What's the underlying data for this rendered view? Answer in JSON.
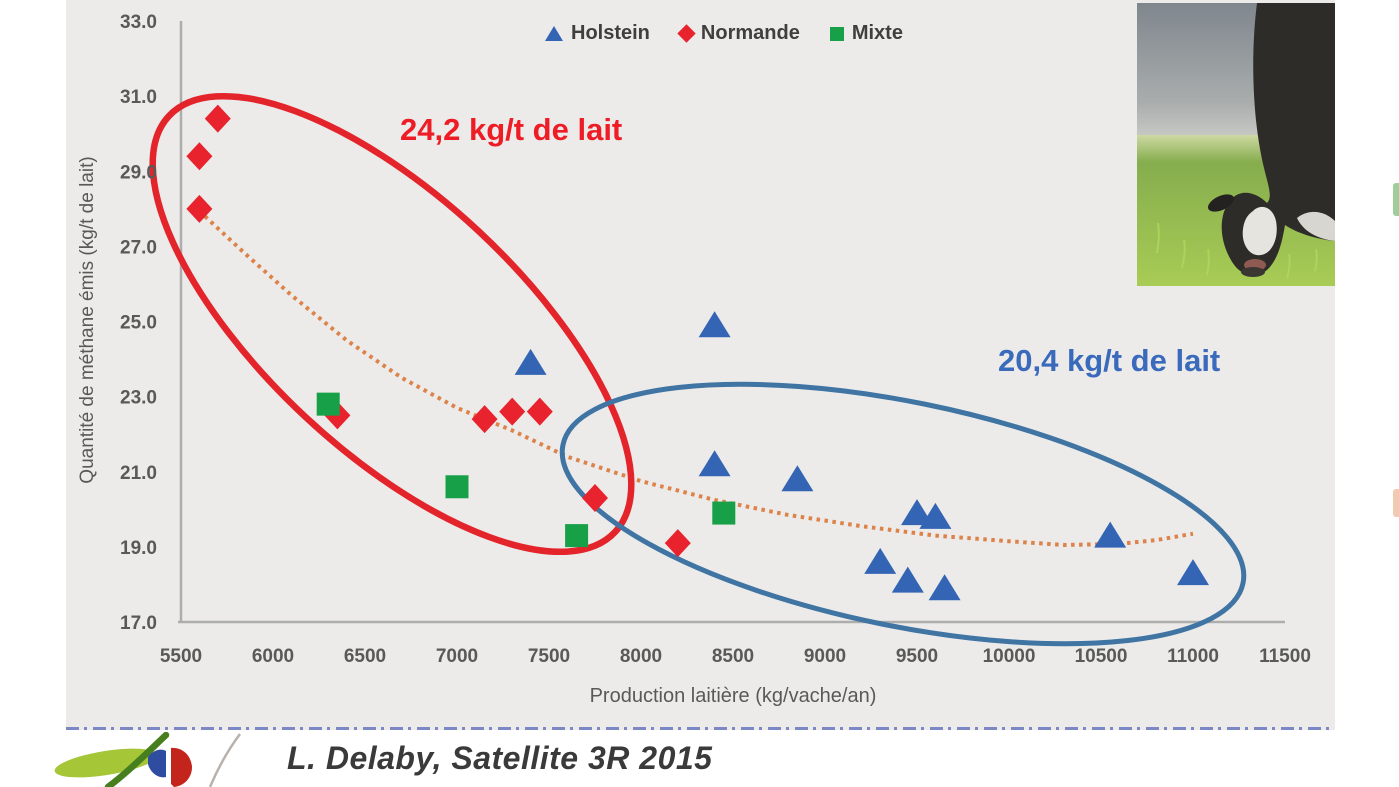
{
  "slide": {
    "background": "#ECEBEA",
    "separator_color": "#7C87C6",
    "footer": {
      "caption": "L. Delaby, Satellite 3R 2015"
    }
  },
  "edge_marks": {
    "green": "#9FCE9B",
    "pink": "#F0CBB1"
  },
  "cow_photo": {
    "description": "Holstein cow grazing in a pasture"
  },
  "chart_data": {
    "type": "scatter",
    "title": "",
    "xlabel": "Production laitière (kg/vache/an)",
    "ylabel": "Quantité de méthane émis (kg/t de lait)",
    "xlim": [
      5500,
      11500
    ],
    "ylim": [
      17.0,
      33.0
    ],
    "grid": false,
    "legend_position": "top",
    "x_ticks": [
      "5500",
      "6000",
      "6500",
      "7000",
      "7500",
      "8000",
      "8500",
      "9000",
      "9500",
      "10000",
      "10500",
      "11000",
      "11500"
    ],
    "y_ticks": [
      "33.0",
      "31.0",
      "29.0",
      "27.0",
      "25.0",
      "23.0",
      "21.0",
      "19.0",
      "17.0"
    ],
    "axis_color": "#ADADAD",
    "tick_color": "#595959",
    "series": [
      {
        "name": "Holstein",
        "marker": "triangle",
        "color": "#3465B4",
        "points": [
          [
            7400,
            23.9
          ],
          [
            8400,
            24.9
          ],
          [
            8400,
            21.2
          ],
          [
            8850,
            20.8
          ],
          [
            9300,
            18.6
          ],
          [
            9450,
            18.1
          ],
          [
            9500,
            19.9
          ],
          [
            9600,
            19.8
          ],
          [
            9650,
            17.9
          ],
          [
            10550,
            19.3
          ],
          [
            11000,
            18.3
          ]
        ]
      },
      {
        "name": "Normande",
        "marker": "diamond",
        "color": "#E8232E",
        "points": [
          [
            5600,
            29.4
          ],
          [
            5600,
            28.0
          ],
          [
            5700,
            30.4
          ],
          [
            6350,
            22.5
          ],
          [
            7150,
            22.4
          ],
          [
            7300,
            22.6
          ],
          [
            7450,
            22.6
          ],
          [
            7750,
            20.3
          ],
          [
            8200,
            19.1
          ]
        ]
      },
      {
        "name": "Mixte",
        "marker": "square",
        "color": "#17A048",
        "points": [
          [
            6300,
            22.8
          ],
          [
            7000,
            20.6
          ],
          [
            7650,
            19.3
          ],
          [
            8450,
            19.9
          ]
        ]
      }
    ],
    "trendline": {
      "color": "#DD8248",
      "style": "dotted",
      "points": [
        [
          5630,
          27.8
        ],
        [
          5850,
          26.8
        ],
        [
          6100,
          25.7
        ],
        [
          6400,
          24.5
        ],
        [
          6700,
          23.5
        ],
        [
          7000,
          22.7
        ],
        [
          7300,
          22.1
        ],
        [
          7600,
          21.4
        ],
        [
          8000,
          20.75
        ],
        [
          8400,
          20.25
        ],
        [
          8800,
          19.85
        ],
        [
          9200,
          19.55
        ],
        [
          9600,
          19.3
        ],
        [
          10000,
          19.15
        ],
        [
          10300,
          19.05
        ],
        [
          10600,
          19.08
        ],
        [
          10800,
          19.18
        ],
        [
          11000,
          19.35
        ]
      ]
    },
    "groups": [
      {
        "label": "24,2 kg/t de lait",
        "ellipse_color": "#E3242B",
        "label_color": "#EE1C25"
      },
      {
        "label": "20,4 kg/t de lait",
        "ellipse_color": "#3F74A3",
        "label_color": "#3A6ABC"
      }
    ]
  }
}
